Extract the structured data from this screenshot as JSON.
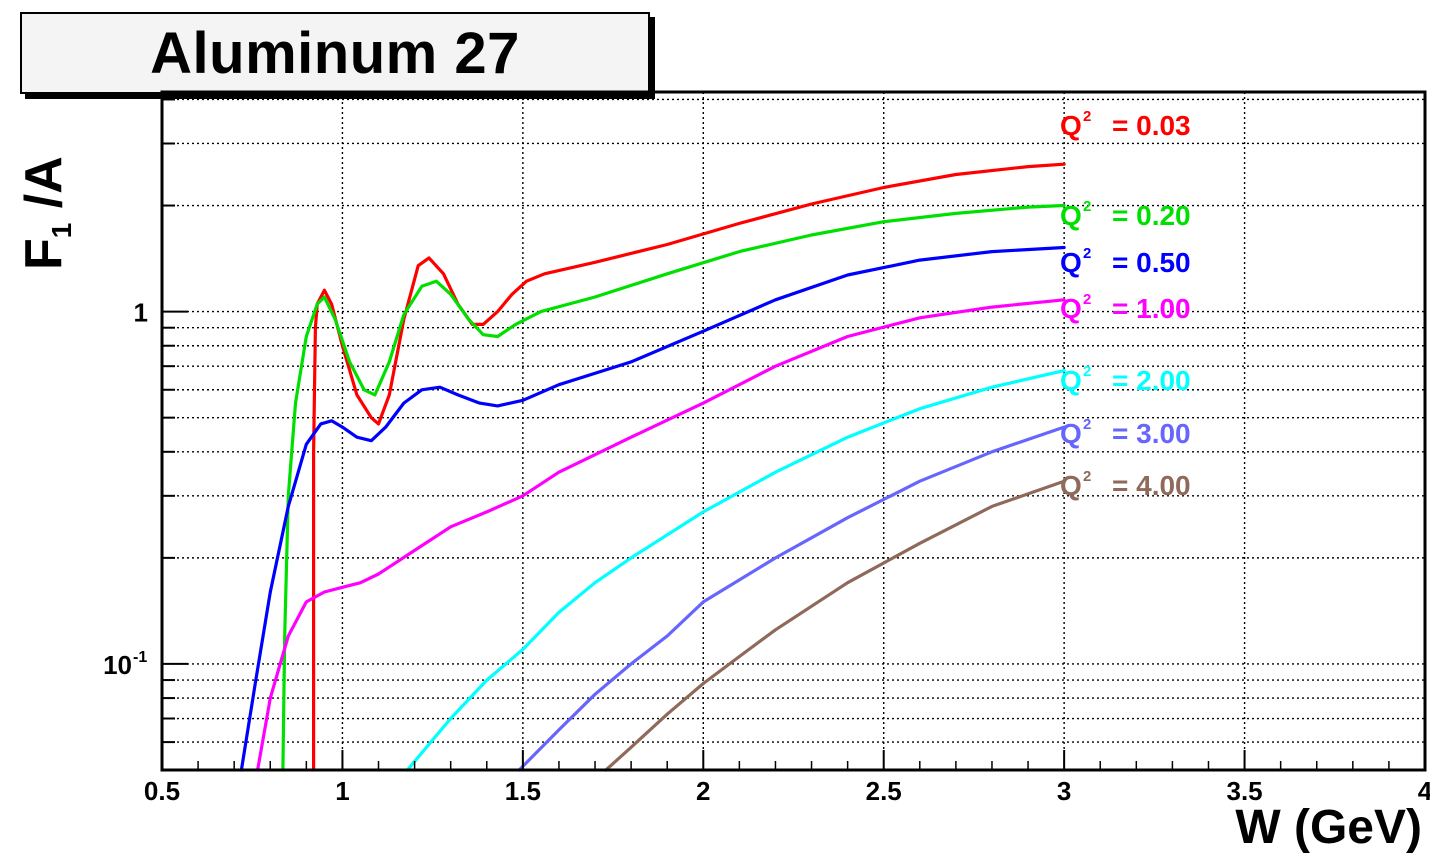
{
  "title": "Aluminum 27",
  "chart_data": {
    "type": "line",
    "title": "Aluminum 27",
    "xlabel": "W (GeV)",
    "ylabel_main": "F",
    "ylabel_sub": "1",
    "ylabel_tail": " /A",
    "xlim": [
      0.5,
      4.0
    ],
    "ylim": [
      0.05,
      4.2
    ],
    "yscale": "log",
    "grid": true,
    "legend_placement": "right",
    "x_ticks": [
      {
        "value": 0.5,
        "label": "0.5"
      },
      {
        "value": 1.0,
        "label": "1"
      },
      {
        "value": 1.5,
        "label": "1.5"
      },
      {
        "value": 2.0,
        "label": "2"
      },
      {
        "value": 2.5,
        "label": "2.5"
      },
      {
        "value": 3.0,
        "label": "3"
      },
      {
        "value": 3.5,
        "label": "3.5"
      },
      {
        "value": 4.0,
        "label": "4"
      }
    ],
    "y_ticks": [
      {
        "value": 1.0,
        "label": "1",
        "sup": ""
      },
      {
        "value": 0.1,
        "label": "10",
        "sup": "-1"
      }
    ],
    "series": [
      {
        "name": "Q² = 0.03",
        "q2_label": "Q",
        "q2_exp": "2",
        "q2_value": "=  0.03",
        "color": "#ff0000",
        "points": [
          [
            0.92,
            0.05
          ],
          [
            0.92,
            0.4
          ],
          [
            0.925,
            0.9
          ],
          [
            0.93,
            1.05
          ],
          [
            0.95,
            1.15
          ],
          [
            0.97,
            1.05
          ],
          [
            1.0,
            0.8
          ],
          [
            1.04,
            0.58
          ],
          [
            1.08,
            0.5
          ],
          [
            1.1,
            0.48
          ],
          [
            1.13,
            0.58
          ],
          [
            1.17,
            0.95
          ],
          [
            1.21,
            1.35
          ],
          [
            1.24,
            1.42
          ],
          [
            1.28,
            1.28
          ],
          [
            1.32,
            1.05
          ],
          [
            1.36,
            0.92
          ],
          [
            1.39,
            0.92
          ],
          [
            1.43,
            1.0
          ],
          [
            1.47,
            1.12
          ],
          [
            1.51,
            1.22
          ],
          [
            1.56,
            1.28
          ],
          [
            1.7,
            1.38
          ],
          [
            1.9,
            1.55
          ],
          [
            2.1,
            1.78
          ],
          [
            2.3,
            2.02
          ],
          [
            2.5,
            2.25
          ],
          [
            2.7,
            2.45
          ],
          [
            2.9,
            2.58
          ],
          [
            3.0,
            2.62
          ]
        ]
      },
      {
        "name": "Q² = 0.20",
        "q2_label": "Q",
        "q2_exp": "2",
        "q2_value": "=  0.20",
        "color": "#00e000",
        "points": [
          [
            0.835,
            0.05
          ],
          [
            0.84,
            0.12
          ],
          [
            0.85,
            0.3
          ],
          [
            0.87,
            0.55
          ],
          [
            0.9,
            0.85
          ],
          [
            0.93,
            1.05
          ],
          [
            0.95,
            1.1
          ],
          [
            0.98,
            0.95
          ],
          [
            1.02,
            0.72
          ],
          [
            1.06,
            0.6
          ],
          [
            1.09,
            0.58
          ],
          [
            1.13,
            0.72
          ],
          [
            1.17,
            0.98
          ],
          [
            1.22,
            1.18
          ],
          [
            1.26,
            1.22
          ],
          [
            1.3,
            1.12
          ],
          [
            1.35,
            0.95
          ],
          [
            1.39,
            0.86
          ],
          [
            1.43,
            0.85
          ],
          [
            1.48,
            0.92
          ],
          [
            1.55,
            1.0
          ],
          [
            1.7,
            1.1
          ],
          [
            1.9,
            1.28
          ],
          [
            2.1,
            1.48
          ],
          [
            2.3,
            1.65
          ],
          [
            2.5,
            1.8
          ],
          [
            2.7,
            1.9
          ],
          [
            2.9,
            1.98
          ],
          [
            3.0,
            2.0
          ]
        ]
      },
      {
        "name": "Q² = 0.50",
        "q2_label": "Q",
        "q2_exp": "2",
        "q2_value": "=  0.50",
        "color": "#0000ff",
        "points": [
          [
            0.72,
            0.05
          ],
          [
            0.76,
            0.09
          ],
          [
            0.8,
            0.16
          ],
          [
            0.85,
            0.28
          ],
          [
            0.9,
            0.42
          ],
          [
            0.94,
            0.48
          ],
          [
            0.97,
            0.49
          ],
          [
            1.0,
            0.47
          ],
          [
            1.04,
            0.44
          ],
          [
            1.08,
            0.43
          ],
          [
            1.12,
            0.47
          ],
          [
            1.17,
            0.55
          ],
          [
            1.22,
            0.6
          ],
          [
            1.27,
            0.61
          ],
          [
            1.32,
            0.58
          ],
          [
            1.38,
            0.55
          ],
          [
            1.43,
            0.54
          ],
          [
            1.5,
            0.56
          ],
          [
            1.6,
            0.62
          ],
          [
            1.8,
            0.72
          ],
          [
            2.0,
            0.88
          ],
          [
            2.2,
            1.08
          ],
          [
            2.4,
            1.27
          ],
          [
            2.6,
            1.4
          ],
          [
            2.8,
            1.48
          ],
          [
            3.0,
            1.52
          ]
        ]
      },
      {
        "name": "Q² = 1.00",
        "q2_label": "Q",
        "q2_exp": "2",
        "q2_value": "=  1.00",
        "color": "#ff00ff",
        "points": [
          [
            0.765,
            0.05
          ],
          [
            0.8,
            0.08
          ],
          [
            0.85,
            0.12
          ],
          [
            0.9,
            0.15
          ],
          [
            0.95,
            0.16
          ],
          [
            1.0,
            0.165
          ],
          [
            1.05,
            0.17
          ],
          [
            1.1,
            0.18
          ],
          [
            1.2,
            0.21
          ],
          [
            1.3,
            0.245
          ],
          [
            1.4,
            0.27
          ],
          [
            1.5,
            0.3
          ],
          [
            1.6,
            0.35
          ],
          [
            1.8,
            0.44
          ],
          [
            2.0,
            0.55
          ],
          [
            2.2,
            0.7
          ],
          [
            2.4,
            0.85
          ],
          [
            2.6,
            0.96
          ],
          [
            2.8,
            1.03
          ],
          [
            3.0,
            1.08
          ]
        ]
      },
      {
        "name": "Q² = 2.00",
        "q2_label": "Q",
        "q2_exp": "2",
        "q2_value": "=  2.00",
        "color": "#00ffff",
        "points": [
          [
            1.18,
            0.05
          ],
          [
            1.3,
            0.07
          ],
          [
            1.4,
            0.09
          ],
          [
            1.5,
            0.11
          ],
          [
            1.6,
            0.14
          ],
          [
            1.7,
            0.17
          ],
          [
            1.8,
            0.2
          ],
          [
            2.0,
            0.27
          ],
          [
            2.2,
            0.35
          ],
          [
            2.4,
            0.44
          ],
          [
            2.6,
            0.53
          ],
          [
            2.8,
            0.61
          ],
          [
            3.0,
            0.68
          ]
        ]
      },
      {
        "name": "Q² = 3.00",
        "q2_label": "Q",
        "q2_exp": "2",
        "q2_value": "=  3.00",
        "color": "#6666ff",
        "points": [
          [
            1.49,
            0.05
          ],
          [
            1.6,
            0.065
          ],
          [
            1.7,
            0.082
          ],
          [
            1.8,
            0.1
          ],
          [
            1.9,
            0.12
          ],
          [
            2.0,
            0.15
          ],
          [
            2.2,
            0.2
          ],
          [
            2.4,
            0.26
          ],
          [
            2.6,
            0.33
          ],
          [
            2.8,
            0.4
          ],
          [
            3.0,
            0.47
          ]
        ]
      },
      {
        "name": "Q² = 4.00",
        "q2_label": "Q",
        "q2_exp": "2",
        "q2_value": "=  4.00",
        "color": "#8f6a5a",
        "points": [
          [
            1.73,
            0.05
          ],
          [
            1.8,
            0.058
          ],
          [
            1.9,
            0.072
          ],
          [
            2.0,
            0.088
          ],
          [
            2.1,
            0.105
          ],
          [
            2.2,
            0.125
          ],
          [
            2.4,
            0.17
          ],
          [
            2.6,
            0.22
          ],
          [
            2.8,
            0.28
          ],
          [
            3.0,
            0.33
          ]
        ]
      }
    ]
  }
}
